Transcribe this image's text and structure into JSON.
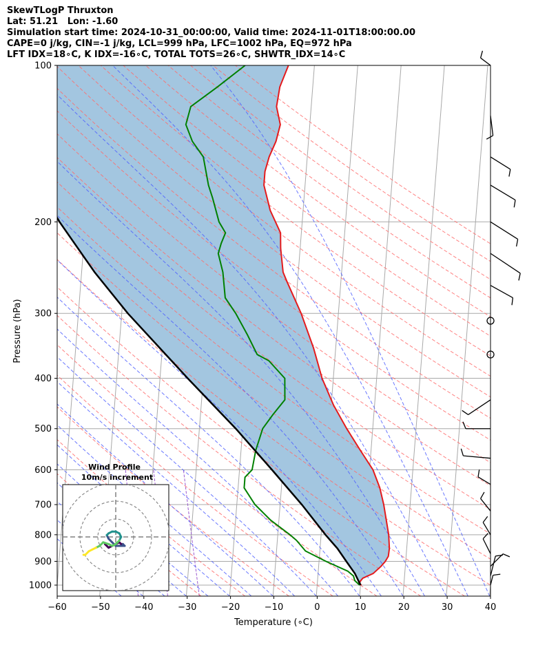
{
  "header": {
    "line1": "SkewTLogP Thruxton",
    "line2": "Lat: 51.21   Lon: -1.60",
    "line3": "Simulation start time: 2024-10-31_00:00:00, Valid time: 2024-11-01T18:00:00.00",
    "line4": "CAPE=0 j/kg, CIN=-1 j/kg, LCL=999 hPa, LFC=1002 hPa, EQ=972 hPa",
    "line5": "LFT IDX=18∘C, K IDX=-16∘C, TOTAL TOTS=26∘C, SHWTR_IDX=14∘C"
  },
  "chart_data": {
    "type": "line",
    "xlabel": "Temperature (∘C)",
    "ylabel": "Pressure (hPa)",
    "xlim": [
      -60,
      40
    ],
    "ylim": [
      1050,
      100
    ],
    "y_scale": "log",
    "x_ticks": [
      -60,
      -50,
      -40,
      -30,
      -20,
      -10,
      0,
      10,
      20,
      30,
      40
    ],
    "x_tick_labels": [
      "−60",
      "−50",
      "−40",
      "−30",
      "−20",
      "−10",
      "0",
      "10",
      "20",
      "30",
      "40"
    ],
    "y_ticks": [
      1000,
      900,
      800,
      700,
      600,
      500,
      400,
      300,
      200,
      100
    ],
    "y_tick_labels": [
      "1000",
      "900",
      "800",
      "700",
      "600",
      "500",
      "400",
      "300",
      "200",
      "100"
    ],
    "skew": true,
    "grid": true,
    "colors": {
      "temperature": "#e41a1c",
      "dewpoint": "#008000",
      "parcel": "#000000",
      "shading": "#a3c6e0",
      "dry_adiabats": "#ff6b6b",
      "moist_adiabats": "#4f5fff",
      "mixing_ratio": "#9b59d0",
      "isotherms": "#a8a8a8"
    },
    "series": [
      {
        "key": "temperature",
        "points": [
          [
            1000,
            10.2
          ],
          [
            990,
            9.6
          ],
          [
            970,
            10.4
          ],
          [
            950,
            12.7
          ],
          [
            920,
            14.4
          ],
          [
            900,
            15.3
          ],
          [
            880,
            15.9
          ],
          [
            850,
            16.0
          ],
          [
            800,
            15.6
          ],
          [
            700,
            13.9
          ],
          [
            650,
            12.7
          ],
          [
            600,
            10.8
          ],
          [
            550,
            7.5
          ],
          [
            500,
            4.0
          ],
          [
            450,
            0.5
          ],
          [
            400,
            -2.6
          ],
          [
            350,
            -5.1
          ],
          [
            300,
            -8.6
          ],
          [
            260,
            -12.5
          ],
          [
            250,
            -13.5
          ],
          [
            225,
            -14.5
          ],
          [
            210,
            -14.8
          ],
          [
            190,
            -17.6
          ],
          [
            170,
            -19.5
          ],
          [
            160,
            -19.5
          ],
          [
            150,
            -18.8
          ],
          [
            140,
            -17.5
          ],
          [
            130,
            -16.8
          ],
          [
            120,
            -18.0
          ],
          [
            110,
            -17.6
          ],
          [
            100,
            -16.0
          ]
        ]
      },
      {
        "key": "dewpoint",
        "points": [
          [
            1000,
            9.8
          ],
          [
            980,
            8.6
          ],
          [
            960,
            8.2
          ],
          [
            940,
            6.8
          ],
          [
            900,
            1.6
          ],
          [
            860,
            -3.3
          ],
          [
            820,
            -5.6
          ],
          [
            800,
            -7.2
          ],
          [
            750,
            -11.9
          ],
          [
            700,
            -15.8
          ],
          [
            650,
            -18.6
          ],
          [
            620,
            -18.6
          ],
          [
            600,
            -17.1
          ],
          [
            550,
            -16.6
          ],
          [
            500,
            -15.4
          ],
          [
            470,
            -13.3
          ],
          [
            440,
            -10.8
          ],
          [
            400,
            -11.2
          ],
          [
            370,
            -15.2
          ],
          [
            360,
            -18.0
          ],
          [
            330,
            -20.6
          ],
          [
            300,
            -23.7
          ],
          [
            280,
            -26.4
          ],
          [
            250,
            -27.4
          ],
          [
            230,
            -28.8
          ],
          [
            220,
            -28.3
          ],
          [
            210,
            -27.5
          ],
          [
            200,
            -29.2
          ],
          [
            180,
            -31.1
          ],
          [
            170,
            -32.3
          ],
          [
            150,
            -34.0
          ],
          [
            140,
            -36.8
          ],
          [
            130,
            -38.6
          ],
          [
            120,
            -37.8
          ],
          [
            110,
            -32.0
          ],
          [
            100,
            -26.0
          ]
        ]
      },
      {
        "key": "parcel",
        "points": [
          [
            1000,
            10.0
          ],
          [
            950,
            8.5
          ],
          [
            900,
            6.3
          ],
          [
            850,
            4.0
          ],
          [
            800,
            1.0
          ],
          [
            700,
            -5.0
          ],
          [
            600,
            -12.5
          ],
          [
            500,
            -21.6
          ],
          [
            400,
            -33.6
          ],
          [
            300,
            -48.6
          ],
          [
            250,
            -57.0
          ],
          [
            200,
            -66.0
          ],
          [
            150,
            -76.0
          ],
          [
            100,
            -90.0
          ]
        ]
      }
    ],
    "wind_barbs": [
      {
        "p": 100,
        "u": -4,
        "v": 3
      },
      {
        "p": 125,
        "u": 1,
        "v": -8
      },
      {
        "p": 150,
        "u": 8,
        "v": -5
      },
      {
        "p": 170,
        "u": 10,
        "v": -6
      },
      {
        "p": 200,
        "u": 11,
        "v": -7
      },
      {
        "p": 230,
        "u": 12,
        "v": -8
      },
      {
        "p": 265,
        "u": 9,
        "v": -5
      },
      {
        "p": 310,
        "u": 0,
        "v": 0
      },
      {
        "p": 360,
        "u": 0,
        "v": 0
      },
      {
        "p": 440,
        "u": -9,
        "v": -6
      },
      {
        "p": 500,
        "u": -10,
        "v": 0
      },
      {
        "p": 570,
        "u": -11,
        "v": 1
      },
      {
        "p": 640,
        "u": -5,
        "v": 3
      },
      {
        "p": 720,
        "u": -4,
        "v": 5
      },
      {
        "p": 800,
        "u": -3,
        "v": 5
      },
      {
        "p": 870,
        "u": -3,
        "v": 6
      },
      {
        "p": 920,
        "u": 5,
        "v": 5
      },
      {
        "p": 960,
        "u": 2,
        "v": 8
      },
      {
        "p": 1000,
        "u": 1,
        "v": 4
      }
    ],
    "wind_profile_inset": {
      "title": "Wind Profile",
      "subtitle": "10m/s increment",
      "rings_ms": [
        10,
        20,
        30
      ],
      "hodograph_uv": [
        [
          -6,
          -4
        ],
        [
          -4,
          -6
        ],
        [
          -2,
          -5
        ],
        [
          0,
          -4
        ],
        [
          2,
          -3
        ],
        [
          3,
          -4
        ],
        [
          4,
          -4
        ],
        [
          5,
          -5
        ],
        [
          3,
          -5
        ],
        [
          0,
          -5
        ],
        [
          -2,
          -3
        ],
        [
          -4,
          -1
        ],
        [
          -5,
          1
        ],
        [
          -4,
          2
        ],
        [
          -2,
          3
        ],
        [
          0,
          3
        ],
        [
          2,
          2
        ],
        [
          3,
          0
        ],
        [
          2,
          -2
        ],
        [
          0,
          -4
        ],
        [
          -2,
          -5
        ],
        [
          -4,
          -4
        ],
        [
          -7,
          -3
        ],
        [
          -9,
          -5
        ],
        [
          -11,
          -6
        ],
        [
          -13,
          -7
        ],
        [
          -15,
          -8
        ],
        [
          -17,
          -10
        ],
        [
          -18,
          -10
        ]
      ]
    }
  }
}
